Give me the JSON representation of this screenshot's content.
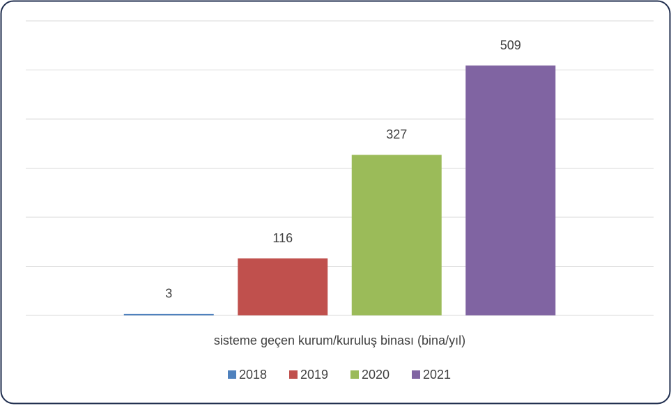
{
  "chart_data": {
    "type": "bar",
    "categories": [
      "sisteme geçen kurum/kuruluş binası (bina/yıl)"
    ],
    "series": [
      {
        "name": "2018",
        "color": "#4f81bd",
        "values": [
          3
        ]
      },
      {
        "name": "2019",
        "color": "#c0504d",
        "values": [
          116
        ]
      },
      {
        "name": "2020",
        "color": "#9bbb59",
        "values": [
          327
        ]
      },
      {
        "name": "2021",
        "color": "#8064a2",
        "values": [
          509
        ]
      }
    ],
    "ylim": [
      0,
      600
    ],
    "yticks": [
      0,
      100,
      200,
      300,
      400,
      500,
      600
    ],
    "grid": true,
    "legend": "bottom"
  }
}
